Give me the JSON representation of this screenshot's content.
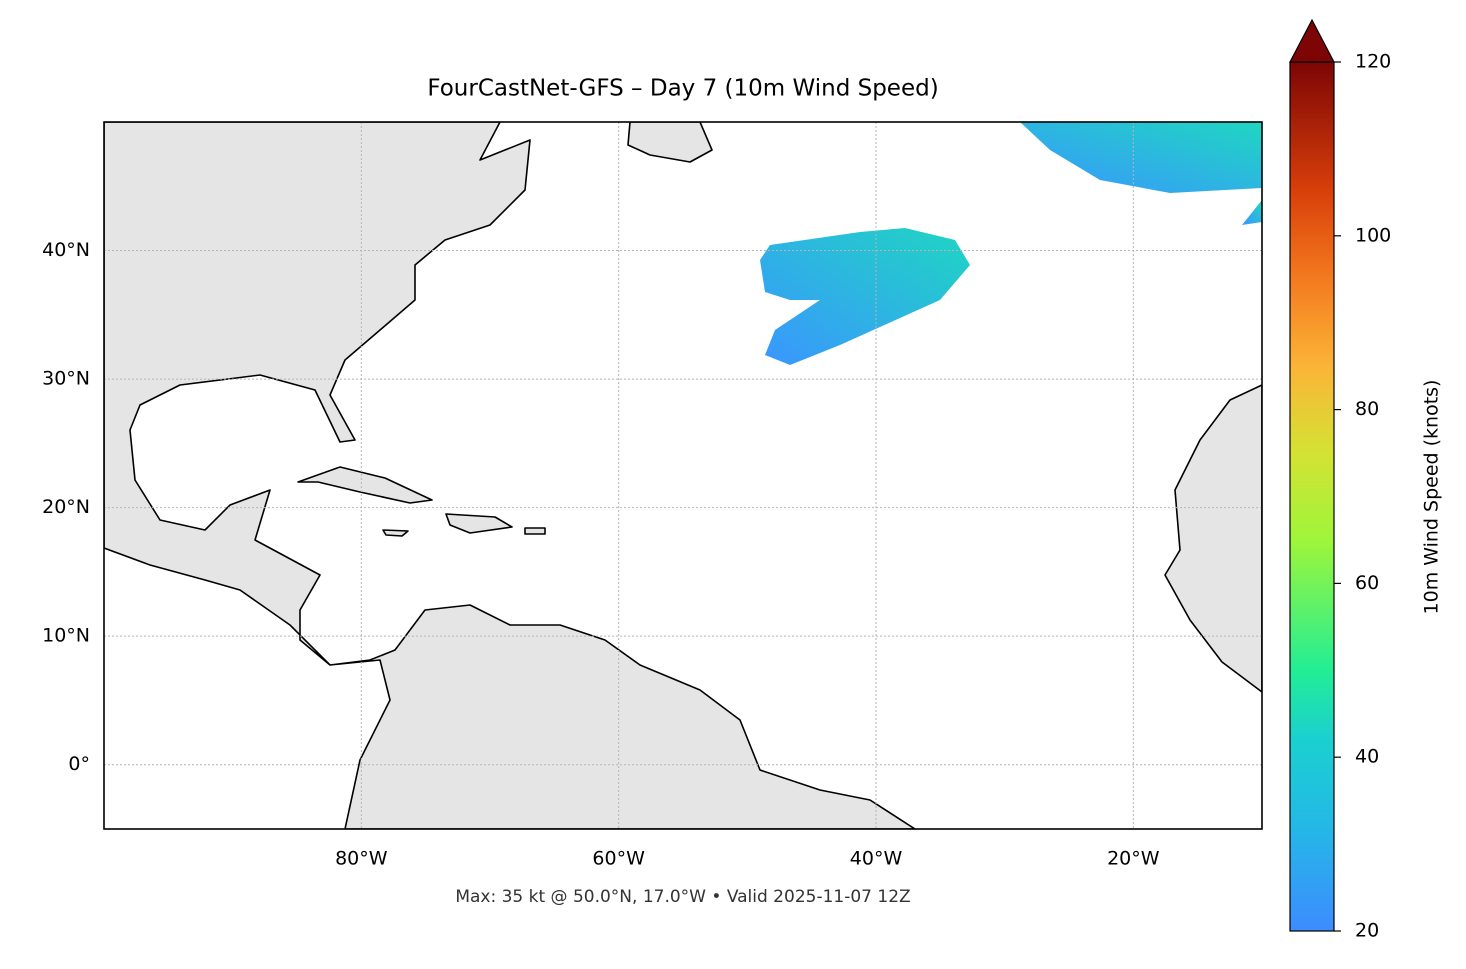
{
  "chart_data": {
    "type": "map",
    "title": "FourCastNet-GFS – Day 7 (10m Wind Speed)",
    "caption": "Max: 35 kt @ 50.0°N, 17.0°W • Valid 2025-11-07 12Z",
    "xlim": [
      -100,
      -10
    ],
    "ylim": [
      -5,
      50
    ],
    "xticks": [
      {
        "value": -80,
        "label": "80°W"
      },
      {
        "value": -60,
        "label": "60°W"
      },
      {
        "value": -40,
        "label": "40°W"
      },
      {
        "value": -20,
        "label": "20°W"
      }
    ],
    "yticks": [
      {
        "value": 0,
        "label": "0°"
      },
      {
        "value": 10,
        "label": "10°N"
      },
      {
        "value": 20,
        "label": "20°N"
      },
      {
        "value": 30,
        "label": "30°N"
      },
      {
        "value": 40,
        "label": "40°N"
      }
    ],
    "grid": true,
    "colorbar": {
      "label": "10m Wind Speed (knots)",
      "lim": [
        20,
        120
      ],
      "ticks": [
        20,
        40,
        60,
        80,
        100,
        120
      ]
    }
  }
}
